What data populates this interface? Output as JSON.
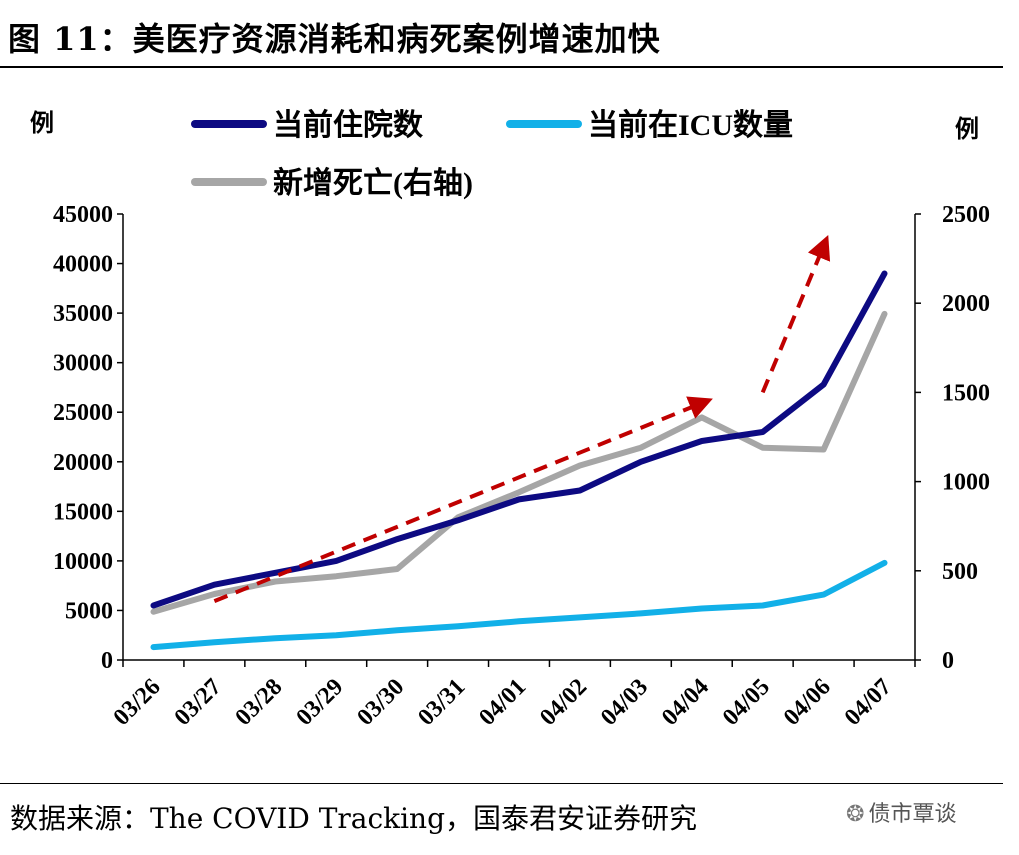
{
  "title": "图 11：美医疗资源消耗和病死案例增速加快",
  "source": "数据来源：The COVID Tracking，国泰君安证券研究",
  "watermark": "债市覃谈",
  "colors": {
    "hospitalized": "#0d0a82",
    "icu": "#12b0e8",
    "deaths": "#a6a6a6",
    "arrow": "#c00000"
  },
  "chart_data": {
    "type": "line",
    "categories": [
      "03/26",
      "03/27",
      "03/28",
      "03/29",
      "03/30",
      "03/31",
      "04/01",
      "04/02",
      "04/03",
      "04/04",
      "04/05",
      "04/06",
      "04/07"
    ],
    "y_left": {
      "unit_label": "例",
      "range": [
        0,
        45000
      ],
      "ticks": [
        "0",
        "5000",
        "10000",
        "15000",
        "20000",
        "25000",
        "30000",
        "35000",
        "40000",
        "45000"
      ]
    },
    "y_right": {
      "unit_label": "例",
      "range": [
        0,
        2500
      ],
      "ticks": [
        "0",
        "500",
        "1000",
        "1500",
        "2000",
        "2500"
      ]
    },
    "series": [
      {
        "name": "当前住院数",
        "axis": "left",
        "color": "#0d0a82",
        "values": [
          5500,
          7600,
          8800,
          10000,
          12200,
          14100,
          16200,
          17100,
          20000,
          22100,
          23000,
          27800,
          39000
        ]
      },
      {
        "name": "当前在ICU数量",
        "axis": "left",
        "color": "#12b0e8",
        "values": [
          1300,
          1800,
          2200,
          2500,
          3000,
          3400,
          3900,
          4300,
          4700,
          5200,
          5500,
          6600,
          9800
        ]
      },
      {
        "name": "新增死亡(右轴)",
        "axis": "right",
        "color": "#a6a6a6",
        "values": [
          270,
          370,
          440,
          470,
          510,
          800,
          940,
          1090,
          1190,
          1360,
          1190,
          1180,
          1940
        ]
      }
    ],
    "legend_position": "top",
    "grid": false,
    "trend_arrows": [
      {
        "from": [
          "03/27",
          330
        ],
        "to": [
          "04/04",
          1440
        ],
        "axis": "right"
      },
      {
        "from": [
          "04/05",
          1500
        ],
        "to": [
          "04/06",
          2320
        ],
        "axis": "right"
      }
    ]
  }
}
